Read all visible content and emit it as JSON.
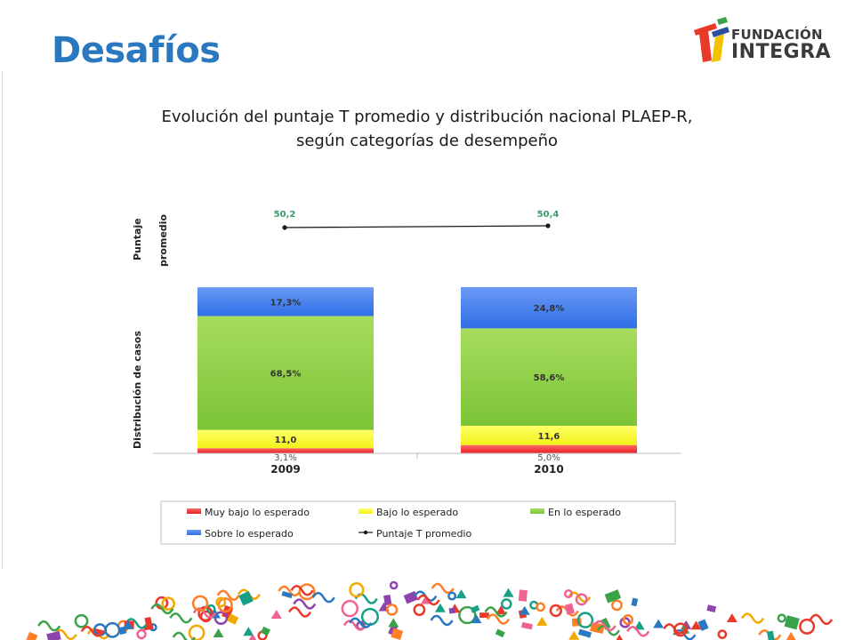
{
  "slide": {
    "title": "Desafíos",
    "logo": {
      "top": "FUNDACIÓN",
      "bottom": "INTEGRA"
    },
    "chart_title_line1": "Evolución del puntaje T promedio y distribución nacional PLAEP-R,",
    "chart_title_line2": "según categorías de desempeño"
  },
  "chart_data": {
    "type": "bar",
    "title": "Evolución del puntaje T promedio y distribución nacional PLAEP-R, según categorías de desempeño",
    "stacked": true,
    "normalized": "percent",
    "categories": [
      "2009",
      "2010"
    ],
    "series": [
      {
        "name": "Muy bajo lo esperado",
        "values": [
          3.1,
          5.0
        ],
        "labels": [
          "3,1%",
          "5,0%"
        ],
        "color": "#ff3b3b"
      },
      {
        "name": "Bajo lo esperado",
        "values": [
          11.0,
          11.6
        ],
        "labels": [
          "11,0",
          "11,6"
        ],
        "color": "#ffff33"
      },
      {
        "name": "En lo esperado",
        "values": [
          68.5,
          58.6
        ],
        "labels": [
          "68,5%",
          "58,6%"
        ],
        "color": "#8fd146"
      },
      {
        "name": "Sobre lo esperado",
        "values": [
          17.3,
          24.8
        ],
        "labels": [
          "17,3%",
          "24,8%"
        ],
        "color": "#3f7ef0"
      }
    ],
    "line_series": {
      "name": "Puntaje T promedio",
      "values": [
        50.2,
        50.4
      ],
      "labels": [
        "50,2",
        "50,4"
      ],
      "color": "#1a1a1a",
      "label_color": "#3a9b6a"
    },
    "axis_labels": {
      "score": [
        "Puntaje",
        "promedio"
      ],
      "distribution": "Distribución de casos"
    },
    "legend_placement": "bottom",
    "grid": false
  }
}
